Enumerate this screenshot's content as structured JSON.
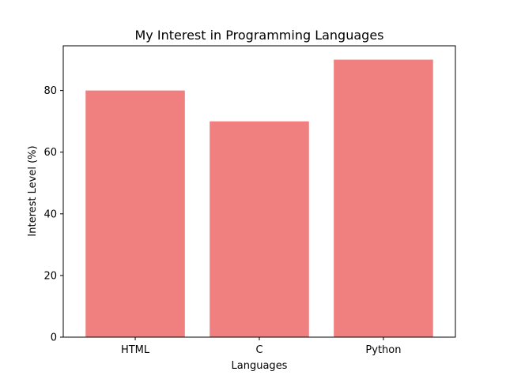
{
  "chart_data": {
    "type": "bar",
    "title": "My Interest in Programming Languages",
    "xlabel": "Languages",
    "ylabel": "Interest Level (%)",
    "categories": [
      "HTML",
      "C",
      "Python"
    ],
    "values": [
      80,
      70,
      90
    ],
    "ylim": [
      0,
      94.5
    ],
    "yticks": [
      0,
      20,
      40,
      60,
      80
    ],
    "bar_color": "#f08080",
    "grid": false,
    "legend": "none"
  }
}
